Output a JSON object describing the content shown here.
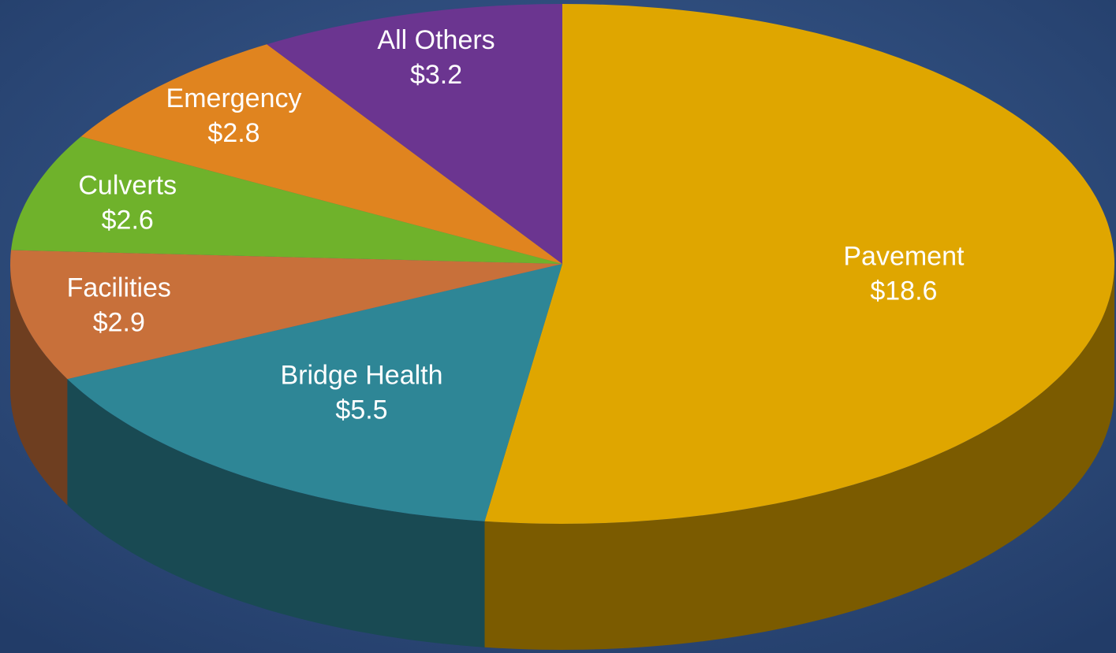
{
  "chart_data": {
    "type": "pie",
    "categories": [
      "Pavement",
      "Bridge Health",
      "Facilities",
      "Culverts",
      "Emergency",
      "All Others"
    ],
    "values": [
      18.6,
      5.5,
      2.9,
      2.6,
      2.8,
      3.2
    ],
    "value_labels": [
      "$18.6",
      "$5.5",
      "$2.9",
      "$2.6",
      "$2.8",
      "$3.2"
    ],
    "colors": [
      "#dfa600",
      "#2e8696",
      "#c8703a",
      "#6fb22b",
      "#e0841f",
      "#6b3590"
    ]
  }
}
